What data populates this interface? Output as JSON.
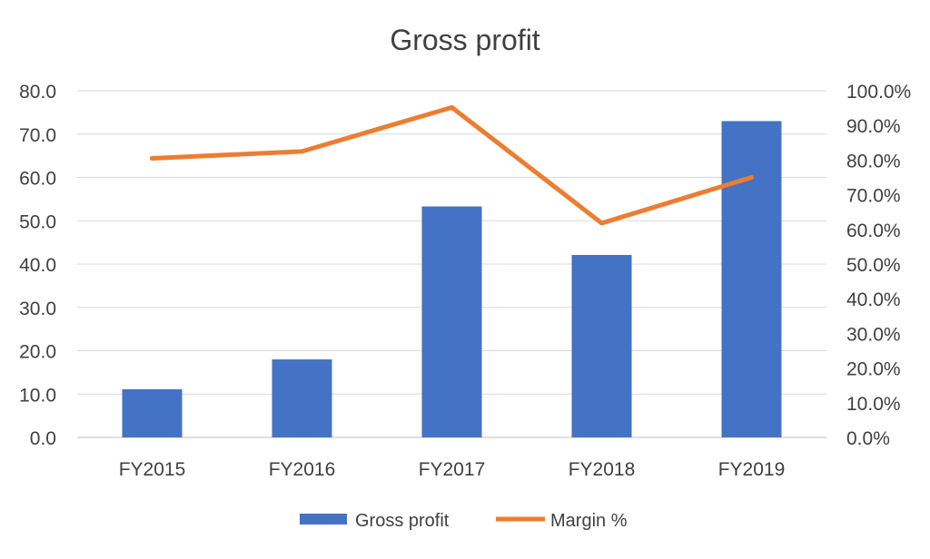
{
  "chart_data": {
    "type": "bar",
    "title": "Gross profit",
    "categories": [
      "FY2015",
      "FY2016",
      "FY2017",
      "FY2018",
      "FY2019"
    ],
    "series": [
      {
        "name": "Gross profit",
        "type": "bar",
        "axis": "left",
        "color": "#4472C4",
        "values": [
          11.1,
          18.0,
          53.3,
          42.1,
          73.0
        ]
      },
      {
        "name": "Margin %",
        "type": "line",
        "axis": "right",
        "color": "#ED7D31",
        "values": [
          80.5,
          82.5,
          95.2,
          61.8,
          75.0
        ]
      }
    ],
    "y_left": {
      "ylim": [
        0,
        80
      ],
      "ticks": [
        "0.0",
        "10.0",
        "20.0",
        "30.0",
        "40.0",
        "50.0",
        "60.0",
        "70.0",
        "80.0"
      ]
    },
    "y_right": {
      "ylim": [
        0,
        100
      ],
      "ticks": [
        "0.0%",
        "10.0%",
        "20.0%",
        "30.0%",
        "40.0%",
        "50.0%",
        "60.0%",
        "70.0%",
        "80.0%",
        "90.0%",
        "100.0%"
      ]
    },
    "grid": true,
    "legend": "bottom"
  }
}
